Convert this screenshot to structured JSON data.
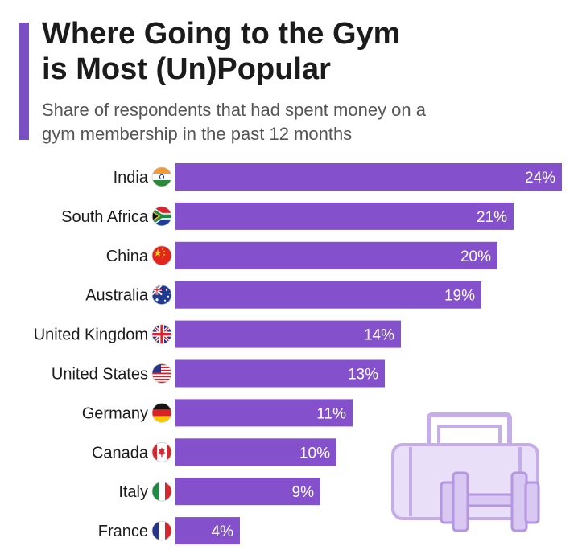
{
  "header": {
    "title_line1": "Where Going to the Gym",
    "title_line2": "is Most (Un)Popular",
    "subtitle_line1": "Share of respondents that had spent money on a",
    "subtitle_line2": "gym membership in the past 12 months"
  },
  "colors": {
    "bar": "#8450cc",
    "accent": "#7a4fc5",
    "illustration_fill": "#d9c9f2",
    "illustration_stroke": "#c5ade8"
  },
  "illustration": "gym-bag-and-dumbbell-icon",
  "chart_data": {
    "type": "bar",
    "orientation": "horizontal",
    "title": "Where Going to the Gym is Most (Un)Popular",
    "subtitle": "Share of respondents that had spent money on a gym membership in the past 12 months",
    "xlabel": "",
    "ylabel": "",
    "xlim": [
      0,
      24
    ],
    "unit": "%",
    "categories": [
      "India",
      "South Africa",
      "China",
      "Australia",
      "United Kingdom",
      "United States",
      "Germany",
      "Canada",
      "Italy",
      "France"
    ],
    "values": [
      24,
      21,
      20,
      19,
      14,
      13,
      11,
      10,
      9,
      4
    ],
    "value_labels": [
      "24%",
      "21%",
      "20%",
      "19%",
      "14%",
      "13%",
      "11%",
      "10%",
      "9%",
      "4%"
    ],
    "flag_icons": [
      "india-flag-icon",
      "south-africa-flag-icon",
      "china-flag-icon",
      "australia-flag-icon",
      "united-kingdom-flag-icon",
      "united-states-flag-icon",
      "germany-flag-icon",
      "canada-flag-icon",
      "italy-flag-icon",
      "france-flag-icon"
    ]
  }
}
